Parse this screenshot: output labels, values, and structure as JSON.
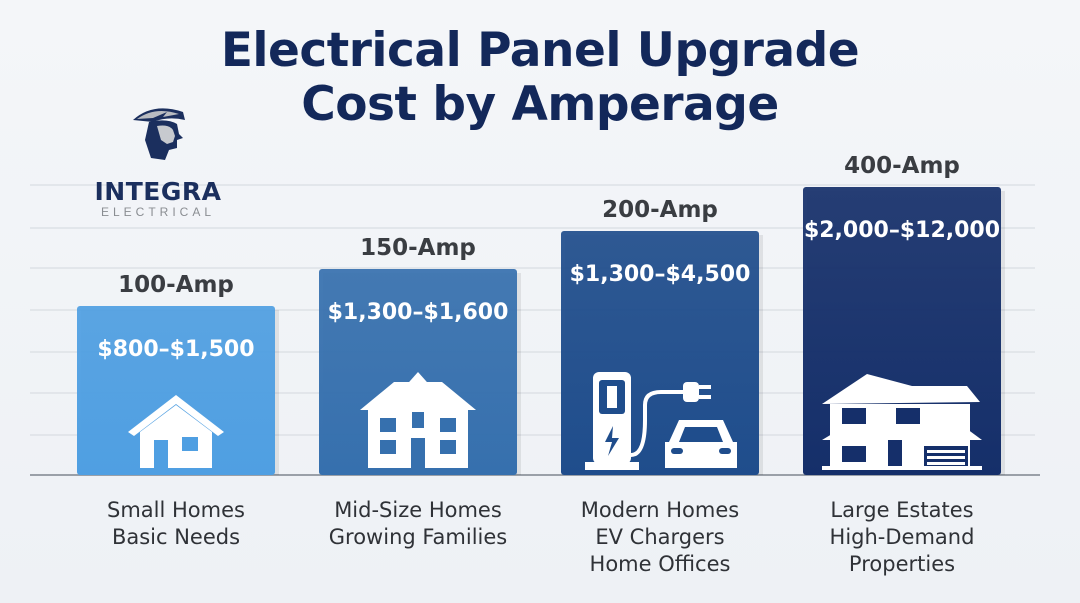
{
  "title_lines": [
    "Electrical Panel Upgrade",
    "Cost by Amperage"
  ],
  "logo": {
    "name": "INTEGRA",
    "sub": "ELECTRICAL"
  },
  "chart_data": {
    "type": "bar",
    "title": "Electrical Panel Upgrade Cost by Amperage",
    "categories": [
      "100-Amp",
      "150-Amp",
      "200-Amp",
      "400-Amp"
    ],
    "price_labels": [
      "$800–$1,500",
      "$1,300–$1,600",
      "$1,300–$4,500",
      "$2,000–$12,000"
    ],
    "ranges": [
      [
        800,
        1500
      ],
      [
        1300,
        1600
      ],
      [
        1300,
        4500
      ],
      [
        2000,
        12000
      ]
    ],
    "descriptions": [
      [
        "Small Homes",
        "Basic Needs"
      ],
      [
        "Mid-Size Homes",
        "Growing Families"
      ],
      [
        "Modern Homes",
        "EV Chargers",
        "Home Offices"
      ],
      [
        "Large Estates",
        "High-Demand",
        "Properties"
      ]
    ],
    "icons": [
      "small-house-icon",
      "two-story-house-icon",
      "ev-charger-car-icon",
      "large-estate-icon"
    ],
    "colors": [
      "#4f9fe2",
      "#3670ae",
      "#1f4d8c",
      "#152f6a"
    ],
    "grid": true,
    "xlabel": "",
    "ylabel": ""
  }
}
